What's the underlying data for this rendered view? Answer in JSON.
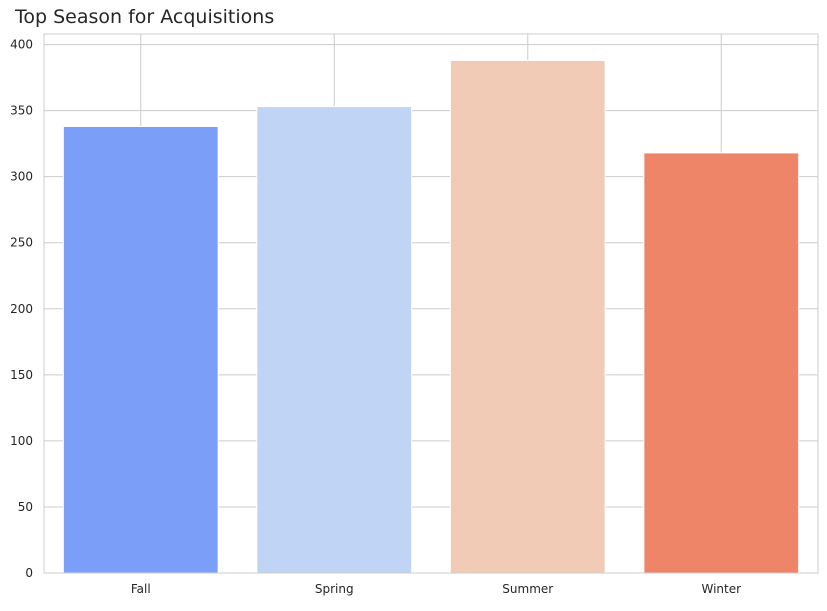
{
  "chart_data": {
    "type": "bar",
    "title": "Top Season for Acquisitions",
    "xlabel": "",
    "ylabel": "",
    "categories": [
      "Fall",
      "Spring",
      "Summer",
      "Winter"
    ],
    "values": [
      338,
      353,
      388,
      318
    ],
    "colors": [
      "#7b9ff9",
      "#c0d4f5",
      "#f2cbb7",
      "#ee8468"
    ],
    "ylim": [
      0,
      408
    ],
    "yticks": [
      0,
      50,
      100,
      150,
      200,
      250,
      300,
      350,
      400
    ],
    "grid": true,
    "legend": "none"
  },
  "theme": {
    "grid_color": "#cccccc",
    "axis_text_color": "#262626",
    "background": "#ffffff"
  }
}
